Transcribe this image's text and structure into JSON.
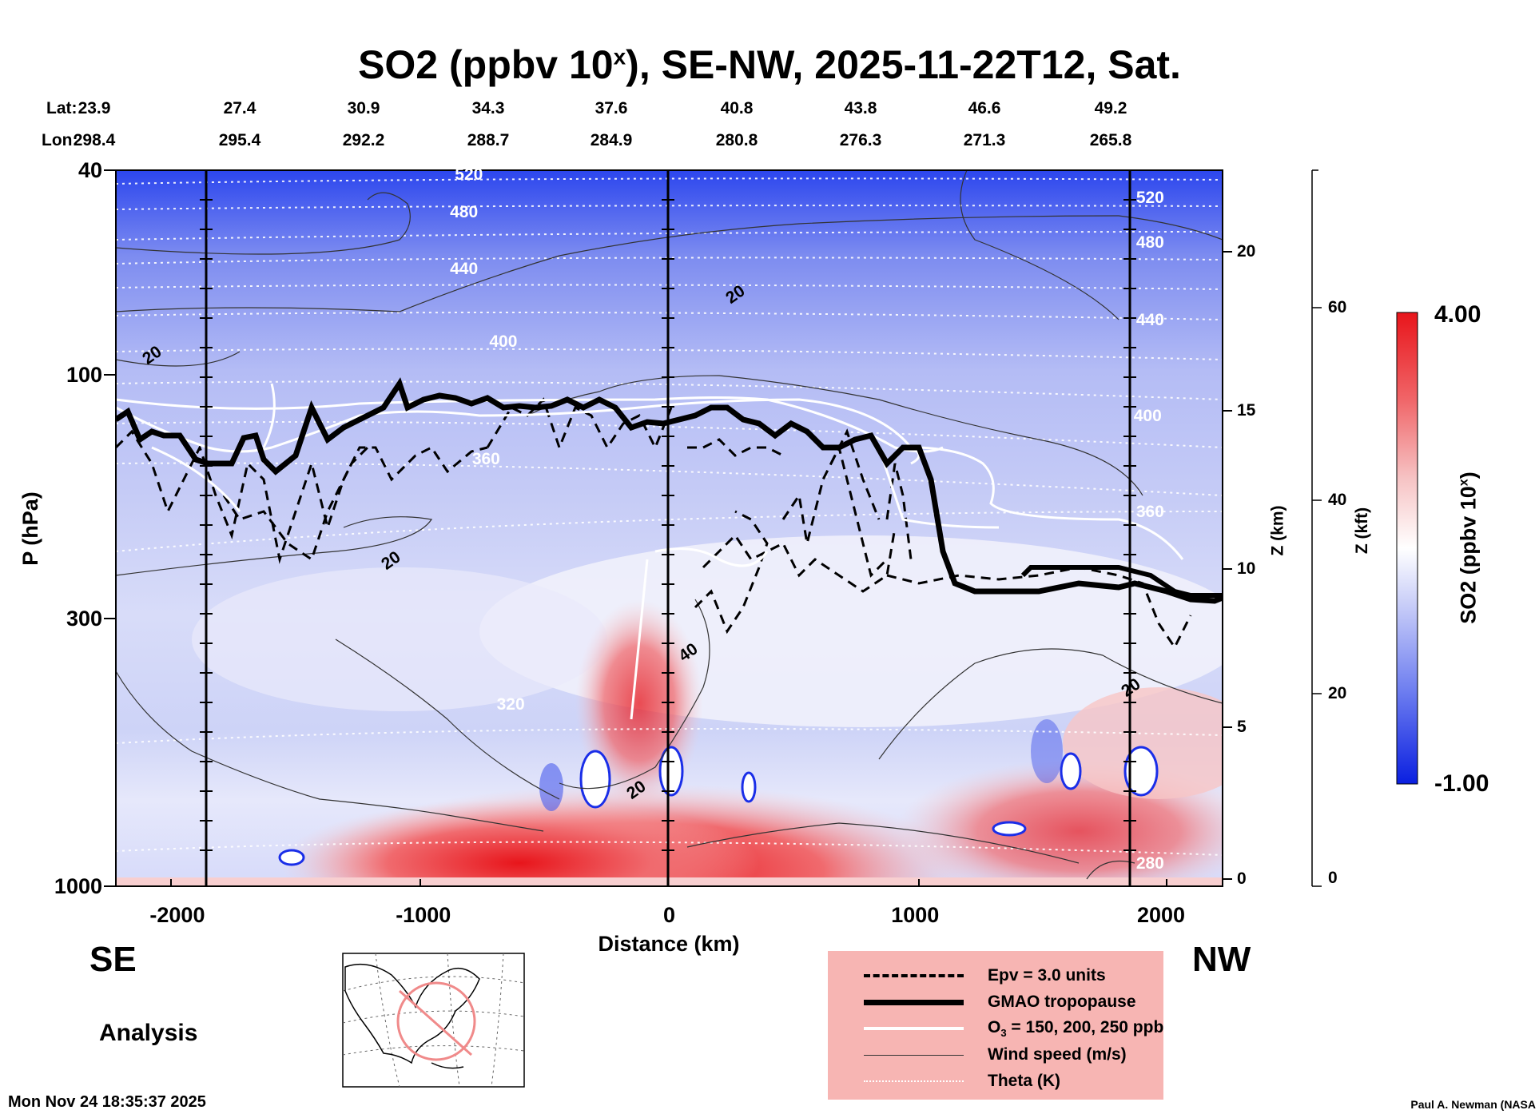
{
  "title": "SO2 (ppbv 10",
  "title_sup": "x",
  "title_tail": "), SE-NW, 2025-11-22T12, Sat.",
  "lat_label": "Lat:",
  "lon_label": "Lon:",
  "lats": [
    "23.9",
    "27.4",
    "30.9",
    "34.3",
    "37.6",
    "40.8",
    "43.8",
    "46.6",
    "49.2"
  ],
  "lons": [
    "298.4",
    "295.4",
    "292.2",
    "288.7",
    "284.9",
    "280.8",
    "276.3",
    "271.3",
    "265.8"
  ],
  "colors": {
    "so2_high": "#e8151b",
    "so2_low": "#1a2ee8",
    "mid": "#ffffff",
    "legend_bg": "#f7b5b3",
    "contour": "#333333"
  },
  "chart_data": {
    "type": "heatmap",
    "title": "SO2 (ppbv 10^x), SE-NW, 2025-11-22T12, Sat.",
    "xlabel": "Distance (km)",
    "ylabel": "P (hPa)",
    "y2label": "Z (km)",
    "y3label": "Z (kft)",
    "colorbar_label": "SO2 (ppbv 10",
    "colorbar_label_sup": "x",
    "colorbar_label_tail": ")",
    "xlim": [
      -2250,
      2250
    ],
    "ylim": [
      1000,
      40
    ],
    "x_ticks": [
      -2000,
      -1000,
      0,
      1000,
      2000
    ],
    "p_ticks": [
      40,
      100,
      300,
      1000
    ],
    "z_km_ticks": [
      0,
      5,
      10,
      15,
      20
    ],
    "z_kft_ticks": [
      0,
      20,
      40,
      60
    ],
    "colorbar_range": [
      -1.0,
      4.0
    ],
    "colorbar_max_label": "4.00",
    "colorbar_min_label": "-1.00",
    "theta_labels": [
      {
        "text": "520",
        "x": -800,
        "p": 40
      },
      {
        "text": "480",
        "x": -820,
        "p": 48
      },
      {
        "text": "440",
        "x": -820,
        "p": 62
      },
      {
        "text": "400",
        "x": -660,
        "p": 86
      },
      {
        "text": "360",
        "x": -730,
        "p": 146
      },
      {
        "text": "320",
        "x": -630,
        "p": 440
      },
      {
        "text": "520",
        "x": 1970,
        "p": 45
      },
      {
        "text": "480",
        "x": 1970,
        "p": 55
      },
      {
        "text": "440",
        "x": 1970,
        "p": 78
      },
      {
        "text": "400",
        "x": 1960,
        "p": 120
      },
      {
        "text": "360",
        "x": 1970,
        "p": 185
      },
      {
        "text": "280",
        "x": 1970,
        "p": 950
      }
    ],
    "wind_labels": [
      {
        "text": "20",
        "x": -2100,
        "p": 92
      },
      {
        "text": "20",
        "x": 270,
        "p": 70
      },
      {
        "text": "20",
        "x": -1130,
        "p": 232
      },
      {
        "text": "40",
        "x": 80,
        "p": 350
      },
      {
        "text": "20",
        "x": -130,
        "p": 650
      },
      {
        "text": "20",
        "x": 1880,
        "p": 410
      }
    ],
    "direction_left": "SE",
    "direction_right": "NW",
    "mode": "Analysis"
  },
  "legend": [
    {
      "label": "Epv = 3.0 units",
      "style": "dashed"
    },
    {
      "label": "GMAO tropopause",
      "style": "thick"
    },
    {
      "label": "O",
      "sub": "3",
      "tail": " = 150, 200, 250 ppb",
      "style": "white"
    },
    {
      "label": "Wind speed (m/s)",
      "style": "thin"
    },
    {
      "label": "Theta (K)",
      "style": "dotted"
    }
  ],
  "timestamp": "Mon Nov 24 18:35:37 2025",
  "credit": "Paul A. Newman (NASA"
}
